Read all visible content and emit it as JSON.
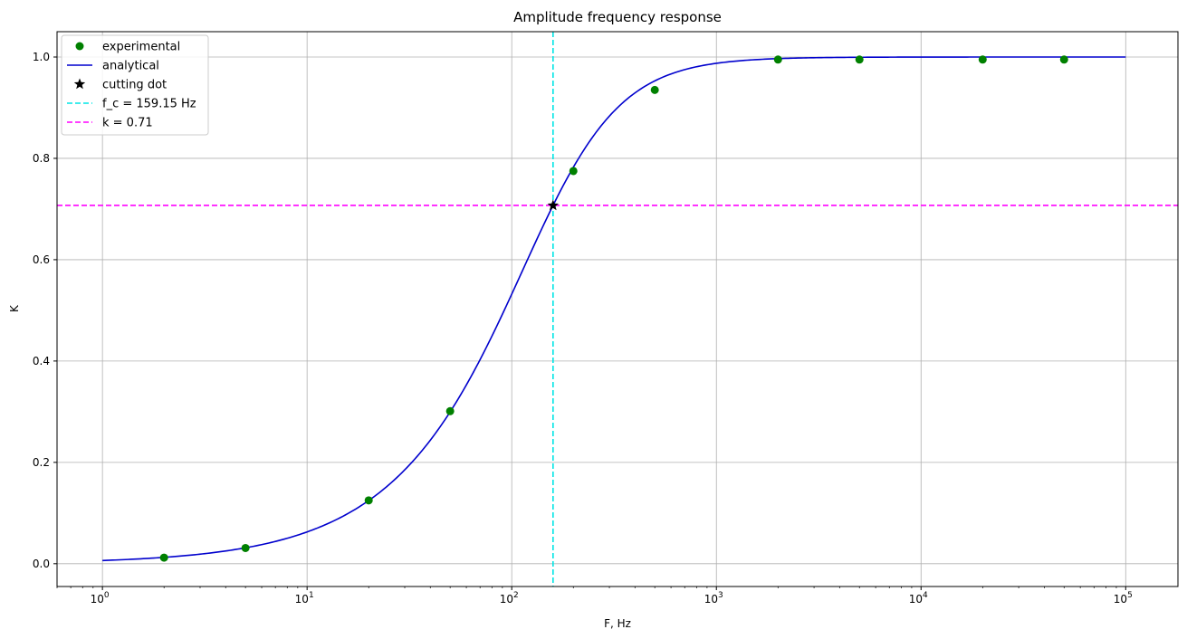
{
  "chart_data": {
    "type": "line",
    "title": "Amplitude frequency response",
    "xlabel": "F, Hz",
    "ylabel": "K",
    "xscale": "log",
    "xlim": [
      0.6,
      180000
    ],
    "ylim": [
      -0.045,
      1.05
    ],
    "grid": true,
    "legend_position": "top-left",
    "x_ticks": [
      1,
      10,
      100,
      1000,
      10000,
      100000
    ],
    "x_tick_labels": [
      {
        "base": "10",
        "exp": "0"
      },
      {
        "base": "10",
        "exp": "1"
      },
      {
        "base": "10",
        "exp": "2"
      },
      {
        "base": "10",
        "exp": "3"
      },
      {
        "base": "10",
        "exp": "4"
      },
      {
        "base": "10",
        "exp": "5"
      }
    ],
    "y_ticks": [
      0.0,
      0.2,
      0.4,
      0.6,
      0.8,
      1.0
    ],
    "y_tick_labels": [
      "0.0",
      "0.2",
      "0.4",
      "0.6",
      "0.8",
      "1.0"
    ],
    "series": [
      {
        "name": "experimental",
        "kind": "scatter",
        "color": "#008000",
        "x": [
          2,
          5,
          20,
          50,
          200,
          500,
          2000,
          5000,
          20000,
          50000
        ],
        "y": [
          0.012,
          0.031,
          0.125,
          0.301,
          0.775,
          0.935,
          0.995,
          0.995,
          0.995,
          0.995
        ]
      },
      {
        "name": "analytical",
        "kind": "line",
        "color": "#0000cd",
        "x_range": [
          1,
          100000
        ],
        "formula": "K = (F/f_c) / sqrt(1 + (F/f_c)^2)"
      },
      {
        "name": "cutting dot",
        "kind": "marker",
        "color": "#000000",
        "x": [
          159.15
        ],
        "y": [
          0.707
        ]
      },
      {
        "name": "f_c = 159.15 Hz",
        "kind": "vline",
        "color": "#00e5e5",
        "x": 159.15
      },
      {
        "name": "k = 0.71",
        "kind": "hline",
        "color": "#ff00ff",
        "y": 0.7071
      }
    ],
    "cutoff_frequency": 159.15
  }
}
